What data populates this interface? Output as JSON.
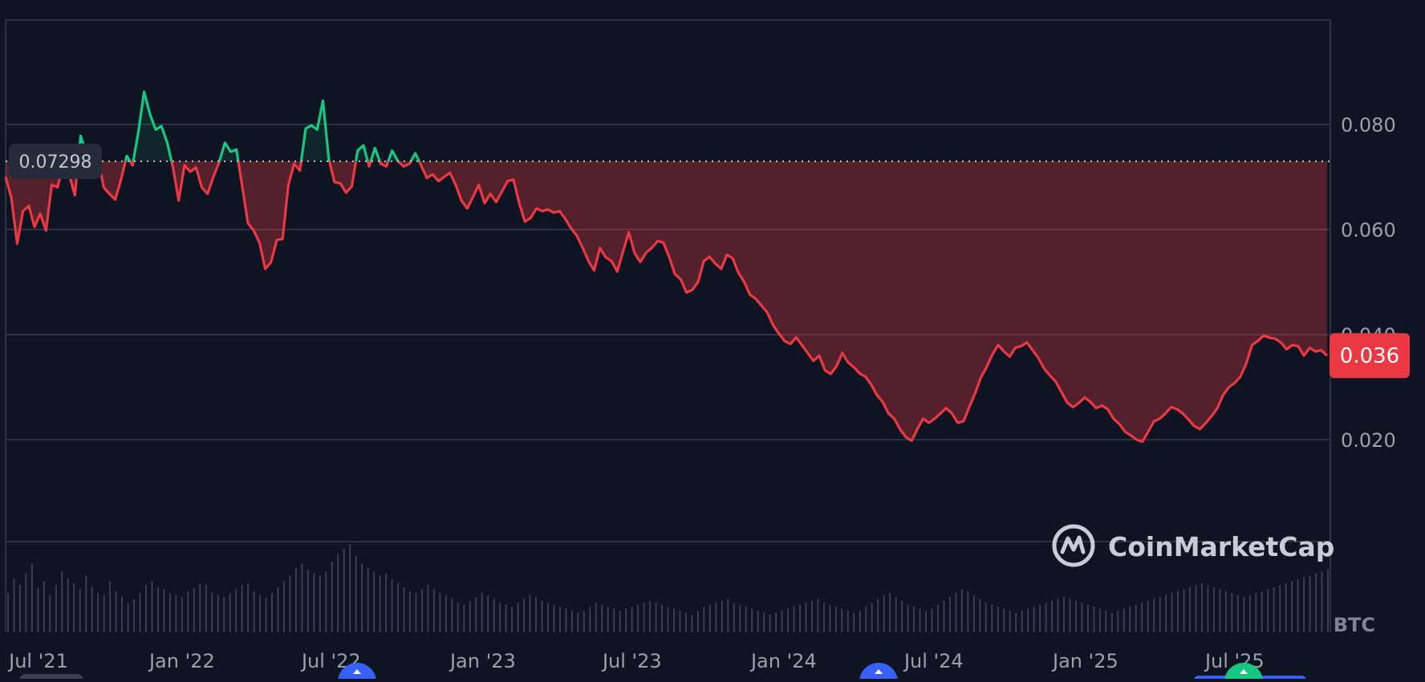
{
  "chart_data": {
    "type": "area",
    "baseline_label": "0.07298",
    "baseline": 0.07298,
    "current_price_label": "0.036",
    "current_price": 0.036,
    "y_ticks": [
      0.02,
      0.04,
      0.06,
      0.08
    ],
    "y_tick_labels": [
      "0.020",
      "0.040",
      "0.060",
      "0.080"
    ],
    "ylim": [
      0,
      0.1
    ],
    "x_tick_labels": [
      "Jul '21",
      "Jan '22",
      "Jul '22",
      "Jan '23",
      "Jul '23",
      "Jan '24",
      "Jul '24",
      "Jan '25",
      "Jul '25"
    ],
    "x_tick_dates": [
      "2021-07-01",
      "2022-01-01",
      "2022-07-01",
      "2023-01-01",
      "2023-07-01",
      "2024-01-01",
      "2024-07-01",
      "2025-01-01",
      "2025-07-01"
    ],
    "xlim": [
      "2021-06-01",
      "2025-10-25"
    ],
    "volume_axis_label": "BTC",
    "watermark": "CoinMarketCap",
    "grid": true,
    "series": [
      {
        "points": [
          [
            "2021-06-01",
            0.07
          ],
          [
            "2021-06-08",
            0.066
          ],
          [
            "2021-06-15",
            0.0573
          ],
          [
            "2021-06-22",
            0.0635
          ],
          [
            "2021-06-29",
            0.0645
          ],
          [
            "2021-07-06",
            0.0605
          ],
          [
            "2021-07-13",
            0.063
          ],
          [
            "2021-07-20",
            0.0598
          ],
          [
            "2021-07-27",
            0.0685
          ],
          [
            "2021-08-03",
            0.068
          ],
          [
            "2021-08-10",
            0.0725
          ],
          [
            "2021-08-17",
            0.0705
          ],
          [
            "2021-08-24",
            0.0665
          ],
          [
            "2021-08-31",
            0.0778
          ],
          [
            "2021-09-07",
            0.0745
          ],
          [
            "2021-09-14",
            0.0722
          ],
          [
            "2021-09-21",
            0.0735
          ],
          [
            "2021-09-28",
            0.068
          ],
          [
            "2021-10-05",
            0.0668
          ],
          [
            "2021-10-12",
            0.0657
          ],
          [
            "2021-10-19",
            0.0695
          ],
          [
            "2021-10-26",
            0.074
          ],
          [
            "2021-11-02",
            0.0722
          ],
          [
            "2021-11-09",
            0.0785
          ],
          [
            "2021-11-16",
            0.0862
          ],
          [
            "2021-11-23",
            0.082
          ],
          [
            "2021-11-30",
            0.079
          ],
          [
            "2021-12-07",
            0.0797
          ],
          [
            "2021-12-14",
            0.0765
          ],
          [
            "2021-12-21",
            0.0718
          ],
          [
            "2021-12-28",
            0.0655
          ],
          [
            "2022-01-04",
            0.0722
          ],
          [
            "2022-01-11",
            0.071
          ],
          [
            "2022-01-18",
            0.0718
          ],
          [
            "2022-01-25",
            0.068
          ],
          [
            "2022-02-01",
            0.0668
          ],
          [
            "2022-02-08",
            0.07
          ],
          [
            "2022-02-15",
            0.0728
          ],
          [
            "2022-02-22",
            0.0765
          ],
          [
            "2022-03-01",
            0.0748
          ],
          [
            "2022-03-08",
            0.0752
          ],
          [
            "2022-03-15",
            0.0682
          ],
          [
            "2022-03-22",
            0.0612
          ],
          [
            "2022-03-29",
            0.0598
          ],
          [
            "2022-04-05",
            0.0575
          ],
          [
            "2022-04-12",
            0.0525
          ],
          [
            "2022-04-19",
            0.0538
          ],
          [
            "2022-04-26",
            0.058
          ],
          [
            "2022-05-03",
            0.0582
          ],
          [
            "2022-05-10",
            0.0685
          ],
          [
            "2022-05-17",
            0.0725
          ],
          [
            "2022-05-24",
            0.0712
          ],
          [
            "2022-05-31",
            0.0792
          ],
          [
            "2022-06-07",
            0.0798
          ],
          [
            "2022-06-14",
            0.079
          ],
          [
            "2022-06-21",
            0.0845
          ],
          [
            "2022-06-28",
            0.0735
          ],
          [
            "2022-07-05",
            0.069
          ],
          [
            "2022-07-12",
            0.0688
          ],
          [
            "2022-07-19",
            0.067
          ],
          [
            "2022-07-26",
            0.0682
          ],
          [
            "2022-08-02",
            0.075
          ],
          [
            "2022-08-09",
            0.076
          ],
          [
            "2022-08-16",
            0.072
          ],
          [
            "2022-08-23",
            0.0755
          ],
          [
            "2022-08-30",
            0.0725
          ],
          [
            "2022-09-06",
            0.072
          ],
          [
            "2022-09-13",
            0.075
          ],
          [
            "2022-09-20",
            0.073
          ],
          [
            "2022-09-27",
            0.072
          ],
          [
            "2022-10-04",
            0.0725
          ],
          [
            "2022-10-11",
            0.0745
          ],
          [
            "2022-10-18",
            0.0722
          ],
          [
            "2022-10-25",
            0.0698
          ],
          [
            "2022-11-01",
            0.0705
          ],
          [
            "2022-11-08",
            0.0692
          ],
          [
            "2022-11-15",
            0.07
          ],
          [
            "2022-11-22",
            0.0708
          ],
          [
            "2022-11-29",
            0.0685
          ],
          [
            "2022-12-06",
            0.0655
          ],
          [
            "2022-12-13",
            0.064
          ],
          [
            "2022-12-20",
            0.0662
          ],
          [
            "2022-12-27",
            0.0685
          ],
          [
            "2023-01-03",
            0.065
          ],
          [
            "2023-01-10",
            0.0668
          ],
          [
            "2023-01-17",
            0.0652
          ],
          [
            "2023-01-24",
            0.0672
          ],
          [
            "2023-01-31",
            0.0692
          ],
          [
            "2023-02-07",
            0.0695
          ],
          [
            "2023-02-14",
            0.065
          ],
          [
            "2023-02-21",
            0.0615
          ],
          [
            "2023-02-28",
            0.0622
          ],
          [
            "2023-03-07",
            0.064
          ],
          [
            "2023-03-14",
            0.0635
          ],
          [
            "2023-03-21",
            0.0638
          ],
          [
            "2023-03-28",
            0.0632
          ],
          [
            "2023-04-04",
            0.0635
          ],
          [
            "2023-04-11",
            0.062
          ],
          [
            "2023-04-18",
            0.0602
          ],
          [
            "2023-04-25",
            0.0588
          ],
          [
            "2023-05-02",
            0.0565
          ],
          [
            "2023-05-09",
            0.054
          ],
          [
            "2023-05-16",
            0.0522
          ],
          [
            "2023-05-23",
            0.0565
          ],
          [
            "2023-05-30",
            0.0547
          ],
          [
            "2023-06-06",
            0.054
          ],
          [
            "2023-06-13",
            0.052
          ],
          [
            "2023-06-20",
            0.0558
          ],
          [
            "2023-06-27",
            0.0595
          ],
          [
            "2023-07-04",
            0.0555
          ],
          [
            "2023-07-11",
            0.0538
          ],
          [
            "2023-07-18",
            0.0556
          ],
          [
            "2023-07-25",
            0.0565
          ],
          [
            "2023-08-01",
            0.0578
          ],
          [
            "2023-08-08",
            0.0575
          ],
          [
            "2023-08-15",
            0.0548
          ],
          [
            "2023-08-22",
            0.0515
          ],
          [
            "2023-08-29",
            0.0505
          ],
          [
            "2023-09-05",
            0.048
          ],
          [
            "2023-09-12",
            0.0485
          ],
          [
            "2023-09-19",
            0.05
          ],
          [
            "2023-09-26",
            0.054
          ],
          [
            "2023-10-03",
            0.0548
          ],
          [
            "2023-10-10",
            0.0535
          ],
          [
            "2023-10-17",
            0.0525
          ],
          [
            "2023-10-24",
            0.0552
          ],
          [
            "2023-10-31",
            0.0545
          ],
          [
            "2023-11-07",
            0.0518
          ],
          [
            "2023-11-14",
            0.05
          ],
          [
            "2023-11-21",
            0.0476
          ],
          [
            "2023-11-28",
            0.0468
          ],
          [
            "2023-12-05",
            0.0455
          ],
          [
            "2023-12-12",
            0.0442
          ],
          [
            "2023-12-19",
            0.0418
          ],
          [
            "2023-12-26",
            0.0402
          ],
          [
            "2024-01-02",
            0.0388
          ],
          [
            "2024-01-09",
            0.0382
          ],
          [
            "2024-01-16",
            0.0395
          ],
          [
            "2024-01-23",
            0.038
          ],
          [
            "2024-01-30",
            0.0365
          ],
          [
            "2024-02-06",
            0.035
          ],
          [
            "2024-02-13",
            0.036
          ],
          [
            "2024-02-20",
            0.0332
          ],
          [
            "2024-02-27",
            0.0325
          ],
          [
            "2024-03-05",
            0.034
          ],
          [
            "2024-03-12",
            0.0365
          ],
          [
            "2024-03-19",
            0.0347
          ],
          [
            "2024-03-26",
            0.0338
          ],
          [
            "2024-04-02",
            0.0326
          ],
          [
            "2024-04-09",
            0.032
          ],
          [
            "2024-04-16",
            0.0305
          ],
          [
            "2024-04-23",
            0.0285
          ],
          [
            "2024-04-30",
            0.0272
          ],
          [
            "2024-05-07",
            0.025
          ],
          [
            "2024-05-14",
            0.024
          ],
          [
            "2024-05-21",
            0.022
          ],
          [
            "2024-05-28",
            0.0205
          ],
          [
            "2024-06-04",
            0.0198
          ],
          [
            "2024-06-11",
            0.022
          ],
          [
            "2024-06-18",
            0.024
          ],
          [
            "2024-06-25",
            0.0232
          ],
          [
            "2024-07-02",
            0.024
          ],
          [
            "2024-07-09",
            0.025
          ],
          [
            "2024-07-16",
            0.026
          ],
          [
            "2024-07-23",
            0.025
          ],
          [
            "2024-07-30",
            0.0232
          ],
          [
            "2024-08-06",
            0.0235
          ],
          [
            "2024-08-13",
            0.0262
          ],
          [
            "2024-08-20",
            0.0288
          ],
          [
            "2024-08-27",
            0.0318
          ],
          [
            "2024-09-03",
            0.0338
          ],
          [
            "2024-09-10",
            0.0362
          ],
          [
            "2024-09-17",
            0.038
          ],
          [
            "2024-09-24",
            0.0368
          ],
          [
            "2024-10-01",
            0.0358
          ],
          [
            "2024-10-08",
            0.0375
          ],
          [
            "2024-10-15",
            0.0378
          ],
          [
            "2024-10-22",
            0.0385
          ],
          [
            "2024-10-29",
            0.037
          ],
          [
            "2024-11-05",
            0.0355
          ],
          [
            "2024-11-12",
            0.0335
          ],
          [
            "2024-11-19",
            0.0322
          ],
          [
            "2024-11-26",
            0.031
          ],
          [
            "2024-12-03",
            0.029
          ],
          [
            "2024-12-10",
            0.027
          ],
          [
            "2024-12-17",
            0.0262
          ],
          [
            "2024-12-24",
            0.027
          ],
          [
            "2024-12-31",
            0.028
          ],
          [
            "2025-01-07",
            0.0272
          ],
          [
            "2025-01-14",
            0.026
          ],
          [
            "2025-01-21",
            0.0265
          ],
          [
            "2025-01-28",
            0.0258
          ],
          [
            "2025-02-04",
            0.024
          ],
          [
            "2025-02-11",
            0.023
          ],
          [
            "2025-02-18",
            0.0215
          ],
          [
            "2025-02-25",
            0.0208
          ],
          [
            "2025-03-04",
            0.02
          ],
          [
            "2025-03-11",
            0.0196
          ],
          [
            "2025-03-18",
            0.0215
          ],
          [
            "2025-03-25",
            0.0235
          ],
          [
            "2025-04-01",
            0.024
          ],
          [
            "2025-04-08",
            0.025
          ],
          [
            "2025-04-15",
            0.0262
          ],
          [
            "2025-04-22",
            0.0258
          ],
          [
            "2025-04-29",
            0.025
          ],
          [
            "2025-05-06",
            0.0238
          ],
          [
            "2025-05-13",
            0.0226
          ],
          [
            "2025-05-20",
            0.022
          ],
          [
            "2025-05-27",
            0.0232
          ],
          [
            "2025-06-03",
            0.0245
          ],
          [
            "2025-06-10",
            0.026
          ],
          [
            "2025-06-17",
            0.0285
          ],
          [
            "2025-06-24",
            0.03
          ],
          [
            "2025-07-01",
            0.0308
          ],
          [
            "2025-07-08",
            0.032
          ],
          [
            "2025-07-15",
            0.0345
          ],
          [
            "2025-07-22",
            0.038
          ],
          [
            "2025-07-29",
            0.0388
          ],
          [
            "2025-08-05",
            0.0398
          ],
          [
            "2025-08-12",
            0.0394
          ],
          [
            "2025-08-19",
            0.0392
          ],
          [
            "2025-08-26",
            0.0385
          ],
          [
            "2025-09-02",
            0.0372
          ],
          [
            "2025-09-09",
            0.038
          ],
          [
            "2025-09-16",
            0.0378
          ],
          [
            "2025-09-23",
            0.036
          ],
          [
            "2025-09-30",
            0.0375
          ],
          [
            "2025-10-07",
            0.0368
          ],
          [
            "2025-10-14",
            0.037
          ],
          [
            "2025-10-21",
            0.036
          ]
        ],
        "colors": {
          "up": "#16c784",
          "down": "#ea3943"
        }
      }
    ],
    "volume_shape": [
      40,
      55,
      48,
      60,
      70,
      45,
      52,
      38,
      48,
      62,
      55,
      50,
      44,
      58,
      46,
      40,
      38,
      52,
      42,
      36,
      30,
      34,
      40,
      48,
      52,
      46,
      44,
      40,
      38,
      36,
      42,
      45,
      50,
      48,
      40,
      38,
      36,
      40,
      44,
      48,
      50,
      42,
      38,
      35,
      40,
      46,
      52,
      58,
      66,
      70,
      64,
      60,
      58,
      62,
      72,
      80,
      85,
      90,
      78,
      70,
      66,
      62,
      58,
      60,
      54,
      50,
      46,
      42,
      40,
      44,
      48,
      44,
      40,
      38,
      34,
      30,
      28,
      32,
      36,
      40,
      38,
      34,
      30,
      28,
      26,
      30,
      34,
      38,
      36,
      32,
      30,
      28,
      26,
      24,
      22,
      20,
      22,
      26,
      30,
      28,
      26,
      24,
      22,
      24,
      26,
      28,
      30,
      32,
      30,
      28,
      26,
      24,
      22,
      20,
      18,
      22,
      26,
      28,
      30,
      32,
      34,
      30,
      28,
      26,
      24,
      22,
      20,
      18,
      20,
      22,
      24,
      26,
      28,
      30,
      32,
      34,
      30,
      28,
      26,
      24,
      22,
      20,
      22,
      26,
      30,
      34,
      38,
      40,
      36,
      32,
      28,
      26,
      24,
      22,
      24,
      28,
      32,
      36,
      40,
      44,
      42,
      38,
      34,
      30,
      28,
      26,
      24,
      22,
      20,
      22,
      24,
      26,
      28,
      30,
      32,
      34,
      36,
      34,
      32,
      30,
      28,
      26,
      24,
      22,
      20,
      22,
      24,
      26,
      28,
      30,
      32,
      34,
      36,
      38,
      40,
      42,
      44,
      46,
      48,
      50,
      48,
      46,
      44,
      42,
      40,
      38,
      36,
      38,
      40,
      42,
      44,
      46,
      48,
      50,
      52,
      54,
      56,
      58,
      60,
      62,
      64
    ]
  }
}
